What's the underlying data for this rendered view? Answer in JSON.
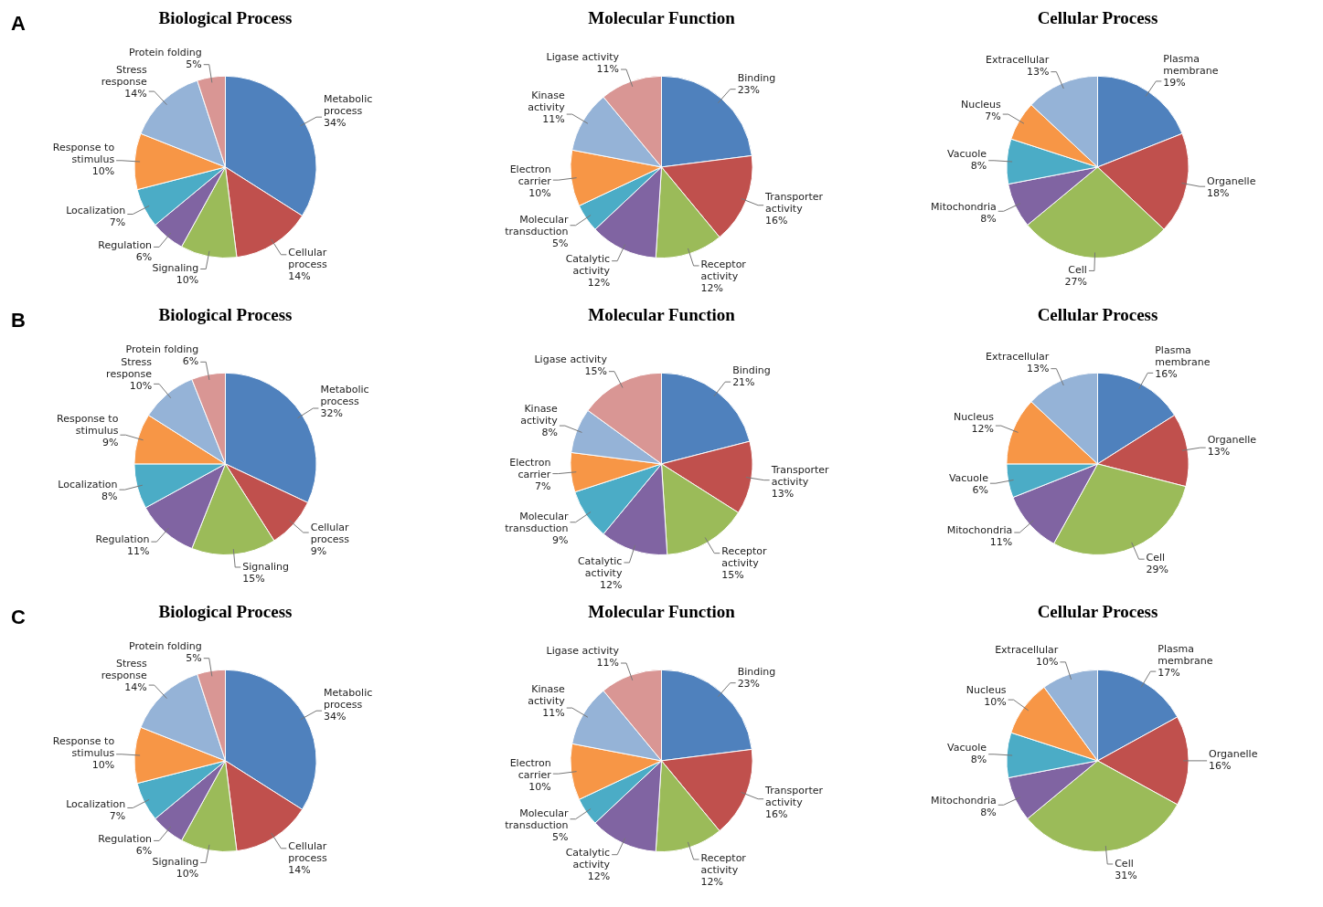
{
  "chart_data": [
    {
      "type": "pie",
      "title": "Biological Process",
      "annotations": [
        "A"
      ],
      "categories": [
        "Metabolic process",
        "Cellular process",
        "Signaling",
        "Regulation",
        "Localization",
        "Response to stimulus",
        "Stress response",
        "Protein folding"
      ],
      "values": [
        34,
        14,
        10,
        6,
        7,
        10,
        14,
        5
      ],
      "value_labels": [
        "34%",
        "14%",
        "10%",
        "6%",
        "7%",
        "10%",
        "14%",
        "5%"
      ],
      "colors": [
        "#4f81bd",
        "#c0504d",
        "#9bbb59",
        "#8064a2",
        "#4bacc6",
        "#f79646",
        "#95b3d7",
        "#d99694"
      ],
      "legend": false
    },
    {
      "type": "pie",
      "title": "Molecular Function",
      "categories": [
        "Binding",
        "Transporter activity",
        "Receptor activity",
        "Catalytic activity",
        "Molecular transduction",
        "Electron carrier",
        "Kinase activity",
        "Ligase activity"
      ],
      "values": [
        23,
        16,
        12,
        12,
        5,
        10,
        11,
        11
      ],
      "value_labels": [
        "23%",
        "16%",
        "12%",
        "12%",
        "5%",
        "10%",
        "11%",
        "11%"
      ],
      "colors": [
        "#4f81bd",
        "#c0504d",
        "#9bbb59",
        "#8064a2",
        "#4bacc6",
        "#f79646",
        "#95b3d7",
        "#d99694"
      ],
      "legend": false
    },
    {
      "type": "pie",
      "title": "Cellular Process",
      "categories": [
        "Plasma membrane",
        "Organelle",
        "Cell",
        "Mitochondria",
        "Vacuole",
        "Nucleus",
        "Extracellular"
      ],
      "values": [
        19,
        18,
        27,
        8,
        8,
        7,
        13
      ],
      "value_labels": [
        "19%",
        "18%",
        "27%",
        "8%",
        "8%",
        "7%",
        "13%"
      ],
      "colors": [
        "#4f81bd",
        "#c0504d",
        "#9bbb59",
        "#8064a2",
        "#4bacc6",
        "#f79646",
        "#95b3d7"
      ],
      "legend": false
    },
    {
      "type": "pie",
      "title": "Biological Process",
      "annotations": [
        "B"
      ],
      "categories": [
        "Metabolic process",
        "Cellular process",
        "Signaling",
        "Regulation",
        "Localization",
        "Response to stimulus",
        "Stress response",
        "Protein folding"
      ],
      "values": [
        32,
        9,
        15,
        11,
        8,
        9,
        10,
        6
      ],
      "value_labels": [
        "32%",
        "9%",
        "15%",
        "11%",
        "8%",
        "9%",
        "10%",
        "6%"
      ],
      "colors": [
        "#4f81bd",
        "#c0504d",
        "#9bbb59",
        "#8064a2",
        "#4bacc6",
        "#f79646",
        "#95b3d7",
        "#d99694"
      ],
      "legend": false
    },
    {
      "type": "pie",
      "title": "Molecular Function",
      "categories": [
        "Binding",
        "Transporter activity",
        "Receptor activity",
        "Catalytic activity",
        "Molecular transduction",
        "Electron carrier",
        "Kinase activity",
        "Ligase activity"
      ],
      "values": [
        21,
        13,
        15,
        12,
        9,
        7,
        8,
        15
      ],
      "value_labels": [
        "21%",
        "13%",
        "15%",
        "12%",
        "9%",
        "7%",
        "8%",
        "15%"
      ],
      "colors": [
        "#4f81bd",
        "#c0504d",
        "#9bbb59",
        "#8064a2",
        "#4bacc6",
        "#f79646",
        "#95b3d7",
        "#d99694"
      ],
      "legend": false
    },
    {
      "type": "pie",
      "title": "Cellular Process",
      "categories": [
        "Plasma membrane",
        "Organelle",
        "Cell",
        "Mitochondria",
        "Vacuole",
        "Nucleus",
        "Extracellular"
      ],
      "values": [
        16,
        13,
        29,
        11,
        6,
        12,
        13
      ],
      "value_labels": [
        "16%",
        "13%",
        "29%",
        "11%",
        "6%",
        "12%",
        "13%"
      ],
      "colors": [
        "#4f81bd",
        "#c0504d",
        "#9bbb59",
        "#8064a2",
        "#4bacc6",
        "#f79646",
        "#95b3d7"
      ],
      "legend": false
    },
    {
      "type": "pie",
      "title": "Biological Process",
      "annotations": [
        "C"
      ],
      "categories": [
        "Metabolic process",
        "Cellular process",
        "Signaling",
        "Regulation",
        "Localization",
        "Response to stimulus",
        "Stress response",
        "Protein folding"
      ],
      "values": [
        34,
        14,
        10,
        6,
        7,
        10,
        14,
        5
      ],
      "value_labels": [
        "34%",
        "14%",
        "10%",
        "6%",
        "7%",
        "10%",
        "14%",
        "5%"
      ],
      "colors": [
        "#4f81bd",
        "#c0504d",
        "#9bbb59",
        "#8064a2",
        "#4bacc6",
        "#f79646",
        "#95b3d7",
        "#d99694"
      ],
      "legend": false
    },
    {
      "type": "pie",
      "title": "Molecular Function",
      "categories": [
        "Binding",
        "Transporter activity",
        "Receptor activity",
        "Catalytic activity",
        "Molecular transduction",
        "Electron carrier",
        "Kinase activity",
        "Ligase activity"
      ],
      "values": [
        23,
        16,
        12,
        12,
        5,
        10,
        11,
        11
      ],
      "value_labels": [
        "23%",
        "16%",
        "12%",
        "12%",
        "5%",
        "10%",
        "11%",
        "11%"
      ],
      "colors": [
        "#4f81bd",
        "#c0504d",
        "#9bbb59",
        "#8064a2",
        "#4bacc6",
        "#f79646",
        "#95b3d7",
        "#d99694"
      ],
      "legend": false
    },
    {
      "type": "pie",
      "title": "Cellular Process",
      "categories": [
        "Plasma membrane",
        "Organelle",
        "Cell",
        "Mitochondria",
        "Vacuole",
        "Nucleus",
        "Extracellular"
      ],
      "values": [
        17,
        16,
        31,
        8,
        8,
        10,
        10
      ],
      "value_labels": [
        "17%",
        "16%",
        "31%",
        "8%",
        "8%",
        "10%",
        "10%"
      ],
      "colors": [
        "#4f81bd",
        "#c0504d",
        "#9bbb59",
        "#8064a2",
        "#4bacc6",
        "#f79646",
        "#95b3d7"
      ],
      "legend": false
    }
  ]
}
